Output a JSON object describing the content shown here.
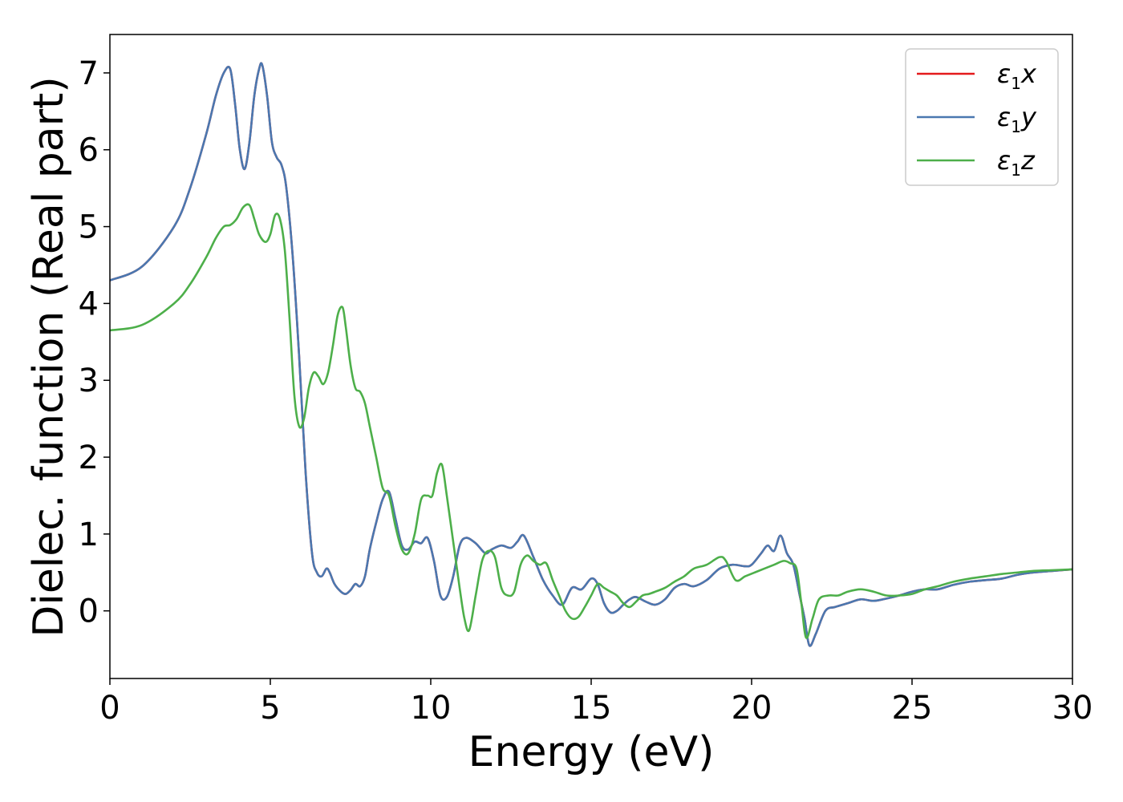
{
  "chart_data": {
    "type": "line",
    "xlabel": "Energy (eV)",
    "ylabel": "Dielec. function (Real part)",
    "xlim": [
      0,
      30
    ],
    "ylim": [
      -0.88,
      7.5
    ],
    "xticks": [
      0,
      5,
      10,
      15,
      20,
      25,
      30
    ],
    "xtick_labels": [
      "0",
      "5",
      "10",
      "15",
      "20",
      "25",
      "30"
    ],
    "yticks": [
      0,
      1,
      2,
      3,
      4,
      5,
      6,
      7
    ],
    "ytick_labels": [
      "0",
      "1",
      "2",
      "3",
      "4",
      "5",
      "6",
      "7"
    ],
    "grid": false,
    "legend_position": "top-right",
    "legend": [
      {
        "main": "ε",
        "sub": "1",
        "suffix": "x",
        "color": "#e41a1c"
      },
      {
        "main": "ε",
        "sub": "1",
        "suffix": "y",
        "color": "#4a78b0"
      },
      {
        "main": "ε",
        "sub": "1",
        "suffix": "z",
        "color": "#4daf4a"
      }
    ],
    "series": [
      {
        "color": "#e41a1c",
        "x": [
          0,
          1,
          2,
          2.5,
          3,
          3.3,
          3.55,
          3.75,
          3.9,
          4.05,
          4.2,
          4.35,
          4.5,
          4.65,
          4.75,
          4.9,
          5.05,
          5.2,
          5.35,
          5.5,
          5.7,
          5.9,
          6.1,
          6.3,
          6.45,
          6.6,
          6.75,
          6.85,
          7.0,
          7.2,
          7.35,
          7.5,
          7.65,
          7.8,
          7.95,
          8.1,
          8.3,
          8.5,
          8.7,
          8.9,
          9.1,
          9.3,
          9.5,
          9.7,
          9.9,
          10.1,
          10.3,
          10.5,
          10.7,
          10.9,
          11.1,
          11.4,
          11.7,
          11.9,
          12.2,
          12.5,
          12.7,
          12.9,
          13.2,
          13.5,
          13.8,
          14.1,
          14.4,
          14.7,
          15.0,
          15.2,
          15.4,
          15.6,
          15.8,
          16.0,
          16.2,
          16.4,
          16.7,
          17.0,
          17.3,
          17.6,
          17.9,
          18.2,
          18.6,
          19.0,
          19.4,
          19.8,
          20.0,
          20.3,
          20.5,
          20.7,
          20.9,
          21.1,
          21.3,
          21.5,
          21.65,
          21.8,
          22.0,
          22.3,
          22.6,
          23.0,
          23.4,
          23.8,
          24.2,
          24.6,
          25.0,
          25.4,
          25.8,
          26.3,
          26.8,
          27.3,
          27.8,
          28.3,
          28.8,
          29.4,
          30
        ],
        "values": [
          4.3,
          4.48,
          5.0,
          5.5,
          6.2,
          6.7,
          7.0,
          7.05,
          6.6,
          6.0,
          5.75,
          6.1,
          6.7,
          7.05,
          7.1,
          6.7,
          6.1,
          5.9,
          5.8,
          5.5,
          4.6,
          3.3,
          1.8,
          0.75,
          0.5,
          0.45,
          0.55,
          0.5,
          0.35,
          0.25,
          0.22,
          0.27,
          0.35,
          0.32,
          0.45,
          0.8,
          1.15,
          1.45,
          1.55,
          1.2,
          0.85,
          0.8,
          0.9,
          0.88,
          0.95,
          0.65,
          0.2,
          0.18,
          0.45,
          0.85,
          0.95,
          0.88,
          0.75,
          0.8,
          0.85,
          0.82,
          0.9,
          0.98,
          0.7,
          0.4,
          0.2,
          0.08,
          0.3,
          0.28,
          0.42,
          0.35,
          0.1,
          -0.02,
          0.0,
          0.08,
          0.15,
          0.18,
          0.12,
          0.08,
          0.15,
          0.3,
          0.35,
          0.32,
          0.4,
          0.55,
          0.6,
          0.58,
          0.6,
          0.75,
          0.85,
          0.78,
          0.98,
          0.75,
          0.6,
          0.2,
          -0.1,
          -0.45,
          -0.3,
          0.0,
          0.05,
          0.1,
          0.15,
          0.13,
          0.16,
          0.2,
          0.25,
          0.28,
          0.28,
          0.34,
          0.38,
          0.4,
          0.42,
          0.47,
          0.5,
          0.52,
          0.54
        ]
      },
      {
        "color": "#4a78b0",
        "x": [
          0,
          1,
          2,
          2.5,
          3,
          3.3,
          3.55,
          3.75,
          3.9,
          4.05,
          4.2,
          4.35,
          4.5,
          4.65,
          4.75,
          4.9,
          5.05,
          5.2,
          5.35,
          5.5,
          5.7,
          5.9,
          6.1,
          6.3,
          6.45,
          6.6,
          6.75,
          6.85,
          7.0,
          7.2,
          7.35,
          7.5,
          7.65,
          7.8,
          7.95,
          8.1,
          8.3,
          8.5,
          8.7,
          8.9,
          9.1,
          9.3,
          9.5,
          9.7,
          9.9,
          10.1,
          10.3,
          10.5,
          10.7,
          10.9,
          11.1,
          11.4,
          11.7,
          11.9,
          12.2,
          12.5,
          12.7,
          12.9,
          13.2,
          13.5,
          13.8,
          14.1,
          14.4,
          14.7,
          15.0,
          15.2,
          15.4,
          15.6,
          15.8,
          16.0,
          16.2,
          16.4,
          16.7,
          17.0,
          17.3,
          17.6,
          17.9,
          18.2,
          18.6,
          19.0,
          19.4,
          19.8,
          20.0,
          20.3,
          20.5,
          20.7,
          20.9,
          21.1,
          21.3,
          21.5,
          21.65,
          21.8,
          22.0,
          22.3,
          22.6,
          23.0,
          23.4,
          23.8,
          24.2,
          24.6,
          25.0,
          25.4,
          25.8,
          26.3,
          26.8,
          27.3,
          27.8,
          28.3,
          28.8,
          29.4,
          30
        ],
        "values": [
          4.3,
          4.48,
          5.0,
          5.5,
          6.2,
          6.7,
          7.0,
          7.05,
          6.6,
          6.0,
          5.75,
          6.1,
          6.7,
          7.05,
          7.1,
          6.7,
          6.1,
          5.9,
          5.8,
          5.5,
          4.6,
          3.3,
          1.8,
          0.75,
          0.5,
          0.45,
          0.55,
          0.5,
          0.35,
          0.25,
          0.22,
          0.27,
          0.35,
          0.32,
          0.45,
          0.8,
          1.15,
          1.45,
          1.55,
          1.2,
          0.85,
          0.8,
          0.9,
          0.88,
          0.95,
          0.65,
          0.2,
          0.18,
          0.45,
          0.85,
          0.95,
          0.88,
          0.75,
          0.8,
          0.85,
          0.82,
          0.9,
          0.98,
          0.7,
          0.4,
          0.2,
          0.08,
          0.3,
          0.28,
          0.42,
          0.35,
          0.1,
          -0.02,
          0.0,
          0.08,
          0.15,
          0.18,
          0.12,
          0.08,
          0.15,
          0.3,
          0.35,
          0.32,
          0.4,
          0.55,
          0.6,
          0.58,
          0.6,
          0.75,
          0.85,
          0.78,
          0.98,
          0.75,
          0.6,
          0.2,
          -0.1,
          -0.45,
          -0.3,
          0.0,
          0.05,
          0.1,
          0.15,
          0.13,
          0.16,
          0.2,
          0.25,
          0.28,
          0.28,
          0.34,
          0.38,
          0.4,
          0.42,
          0.47,
          0.5,
          0.52,
          0.54
        ]
      },
      {
        "color": "#4daf4a",
        "x": [
          0,
          1,
          2,
          2.5,
          3,
          3.3,
          3.55,
          3.75,
          3.95,
          4.15,
          4.35,
          4.5,
          4.65,
          4.85,
          5.0,
          5.15,
          5.3,
          5.45,
          5.6,
          5.75,
          5.9,
          6.05,
          6.2,
          6.35,
          6.5,
          6.65,
          6.8,
          6.95,
          7.1,
          7.25,
          7.35,
          7.5,
          7.65,
          7.8,
          7.95,
          8.1,
          8.3,
          8.5,
          8.7,
          8.9,
          9.1,
          9.3,
          9.5,
          9.7,
          9.9,
          10.05,
          10.2,
          10.35,
          10.5,
          10.7,
          10.9,
          11.05,
          11.2,
          11.4,
          11.6,
          11.8,
          12.0,
          12.2,
          12.4,
          12.6,
          12.8,
          13.0,
          13.2,
          13.4,
          13.6,
          13.8,
          14.0,
          14.2,
          14.4,
          14.6,
          14.8,
          15.0,
          15.2,
          15.4,
          15.6,
          15.8,
          16.0,
          16.2,
          16.4,
          16.6,
          16.8,
          17.0,
          17.3,
          17.6,
          17.9,
          18.2,
          18.6,
          19.0,
          19.2,
          19.5,
          19.8,
          20.1,
          20.4,
          20.7,
          21.0,
          21.2,
          21.4,
          21.55,
          21.7,
          21.9,
          22.1,
          22.4,
          22.7,
          23.0,
          23.4,
          23.8,
          24.2,
          24.6,
          25.0,
          25.4,
          25.8,
          26.3,
          26.8,
          27.3,
          27.8,
          28.3,
          28.8,
          29.4,
          30
        ],
        "values": [
          3.65,
          3.72,
          4.0,
          4.25,
          4.6,
          4.85,
          5.0,
          5.02,
          5.1,
          5.25,
          5.28,
          5.1,
          4.9,
          4.8,
          4.9,
          5.15,
          5.1,
          4.7,
          3.8,
          2.8,
          2.4,
          2.5,
          2.9,
          3.1,
          3.05,
          2.95,
          3.1,
          3.45,
          3.85,
          3.95,
          3.7,
          3.2,
          2.9,
          2.85,
          2.7,
          2.4,
          2.0,
          1.6,
          1.5,
          1.1,
          0.8,
          0.75,
          1.0,
          1.45,
          1.5,
          1.5,
          1.8,
          1.9,
          1.5,
          0.9,
          0.3,
          -0.1,
          -0.25,
          0.2,
          0.65,
          0.78,
          0.7,
          0.3,
          0.2,
          0.25,
          0.6,
          0.72,
          0.65,
          0.6,
          0.62,
          0.4,
          0.2,
          0.0,
          -0.1,
          -0.08,
          0.05,
          0.2,
          0.35,
          0.3,
          0.25,
          0.2,
          0.1,
          0.05,
          0.12,
          0.2,
          0.22,
          0.25,
          0.3,
          0.38,
          0.45,
          0.55,
          0.6,
          0.7,
          0.65,
          0.4,
          0.45,
          0.5,
          0.55,
          0.6,
          0.65,
          0.62,
          0.55,
          0.1,
          -0.35,
          -0.1,
          0.15,
          0.2,
          0.2,
          0.25,
          0.28,
          0.25,
          0.2,
          0.2,
          0.22,
          0.28,
          0.32,
          0.38,
          0.42,
          0.45,
          0.48,
          0.5,
          0.52,
          0.53,
          0.54
        ]
      }
    ]
  }
}
